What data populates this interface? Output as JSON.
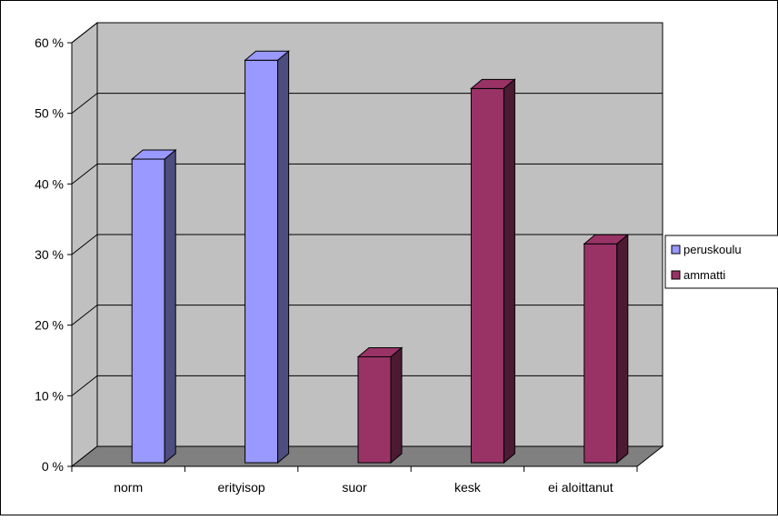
{
  "chart_data": {
    "type": "bar",
    "categories": [
      "norm",
      "erityisop",
      "suor",
      "kesk",
      "ei aloittanut"
    ],
    "series": [
      {
        "name": "peruskoulu",
        "color": "#9999ff",
        "values": [
          43,
          57,
          null,
          null,
          null
        ]
      },
      {
        "name": "ammatti",
        "color": "#993366",
        "values": [
          null,
          null,
          15,
          53,
          31
        ]
      }
    ],
    "y_ticks": [
      "0 %",
      "10 %",
      "20 %",
      "30 %",
      "40 %",
      "50 %",
      "60 %"
    ],
    "ylim": [
      0,
      60
    ],
    "y_unit": "percent",
    "grid": true,
    "plot_background": "#c0c0c0",
    "floor_color": "#808080",
    "legend_position": "right",
    "title": "",
    "xlabel": "",
    "ylabel": ""
  }
}
